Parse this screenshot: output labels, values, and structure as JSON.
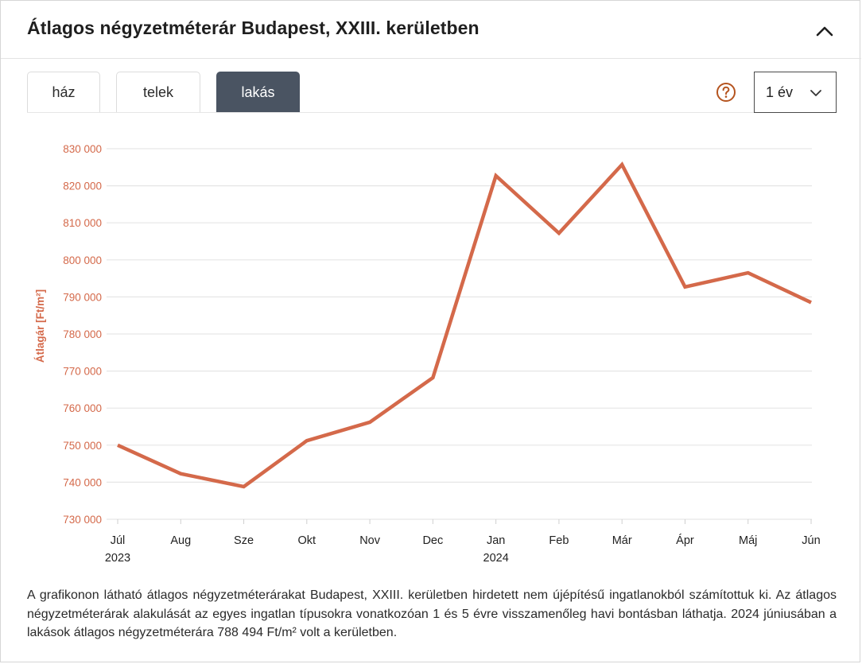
{
  "header": {
    "title": "Átlagos négyzetméterár Budapest, XXIII. kerületben",
    "collapse_icon": "chevron-up-icon"
  },
  "tabs": [
    {
      "label": "ház",
      "active": false
    },
    {
      "label": "telek",
      "active": false
    },
    {
      "label": "lakás",
      "active": true
    }
  ],
  "help_icon": "question-circle-icon",
  "period": {
    "value": "1 év",
    "icon": "chevron-down-icon"
  },
  "colors": {
    "line": "#d4694a",
    "axis_text": "#d4694a",
    "grid": "#e6e6e6",
    "active_tab": "#4a5462",
    "help": "#b5541f"
  },
  "chart_data": {
    "type": "line",
    "ylabel": "Átlagár [Ft/m²]",
    "ylim": [
      730000,
      830000
    ],
    "yticks": [
      730000,
      740000,
      750000,
      760000,
      770000,
      780000,
      790000,
      800000,
      810000,
      820000,
      830000
    ],
    "ytick_labels": [
      "730 000",
      "740 000",
      "750 000",
      "760 000",
      "770 000",
      "780 000",
      "790 000",
      "800 000",
      "810 000",
      "820 000",
      "830 000"
    ],
    "categories": [
      "Júl",
      "Aug",
      "Sze",
      "Okt",
      "Nov",
      "Dec",
      "Jan",
      "Feb",
      "Már",
      "Ápr",
      "Máj",
      "Jún"
    ],
    "year_labels": [
      {
        "index": 0,
        "label": "2023"
      },
      {
        "index": 6,
        "label": "2024"
      }
    ],
    "series": [
      {
        "name": "lakás",
        "values": [
          750000,
          742300,
          738800,
          751200,
          756200,
          768200,
          822700,
          807200,
          825700,
          792700,
          796500,
          788494
        ]
      }
    ]
  },
  "description": "A grafikonon látható átlagos négyzetméterárakat Budapest, XXIII. kerületben hirdetett nem újépítésű ingatlanokból számítottuk ki. Az átlagos négyzetméterárak alakulását az egyes ingatlan típusokra vonatkozóan 1 és 5 évre visszamenőleg havi bontásban láthatja. 2024 júniusában a lakások átlagos négyzetméterára 788 494 Ft/m² volt a kerületben."
}
